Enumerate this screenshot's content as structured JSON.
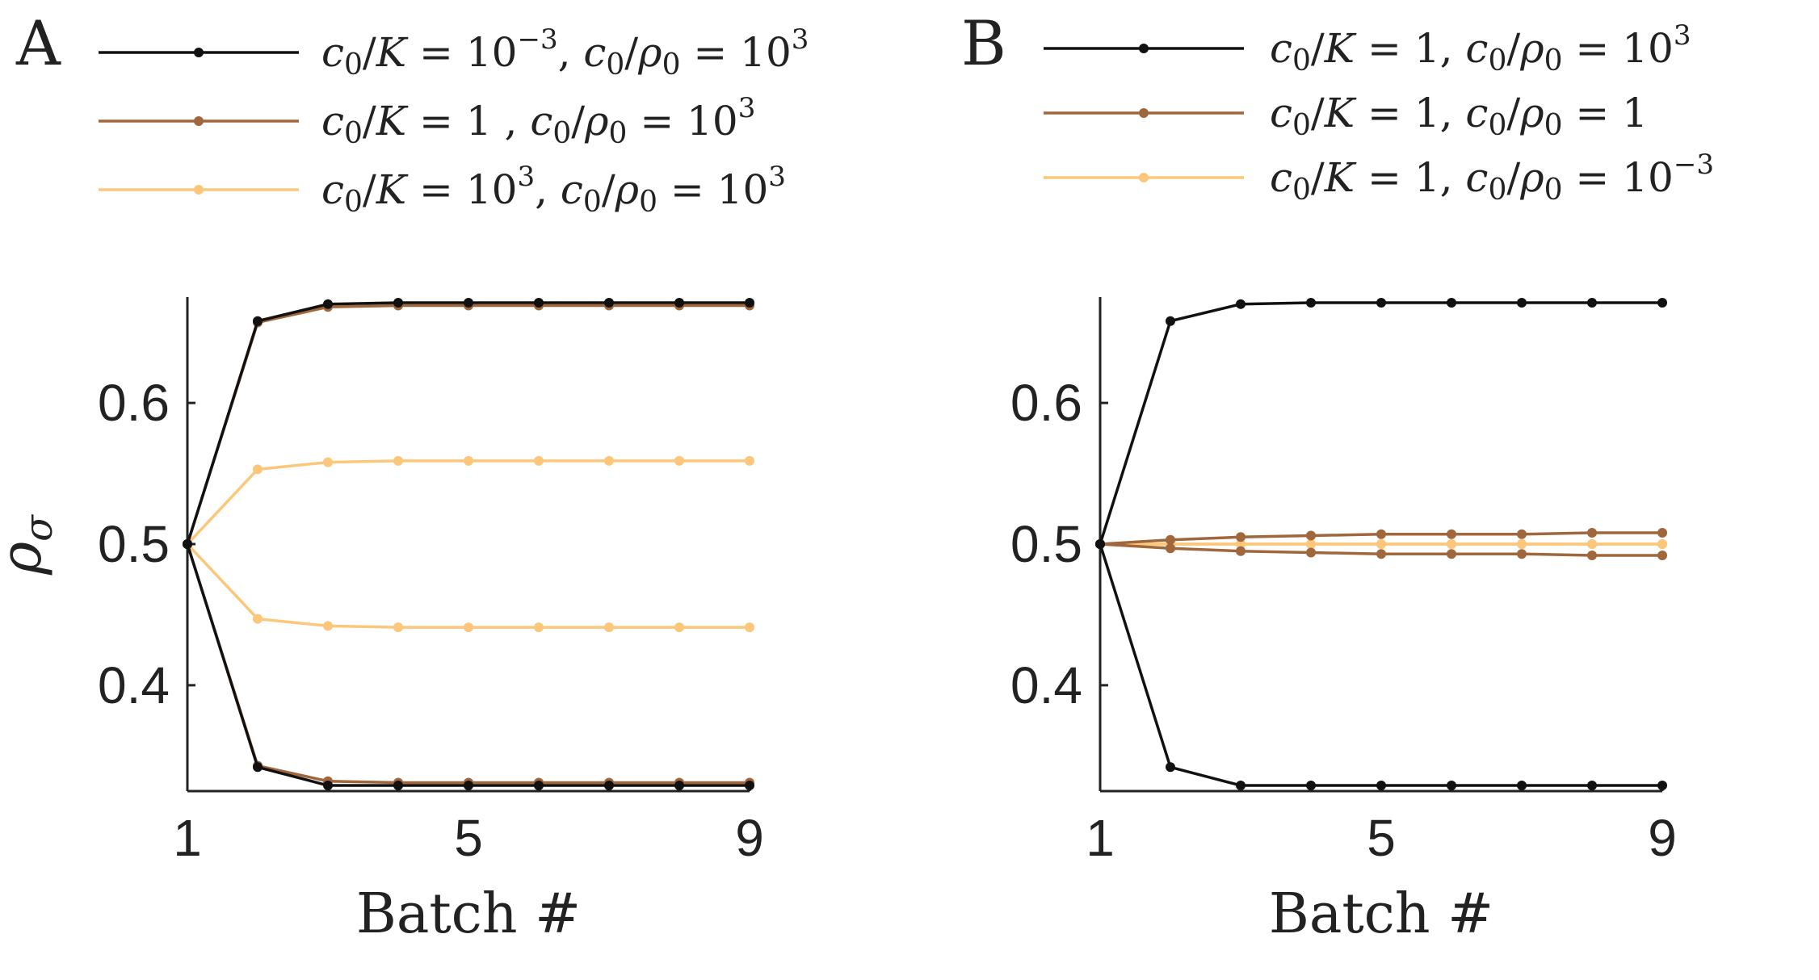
{
  "colors": {
    "black": "#111111",
    "brown": "#a0663c",
    "light": "#fcc77a",
    "axis": "#222222"
  },
  "chart_data": [
    {
      "panel": "A",
      "type": "line",
      "xlabel": "Batch #",
      "ylabel": "ρσ",
      "xlim": [
        1,
        9
      ],
      "ylim": [
        0.325,
        0.675
      ],
      "xticks": [
        1,
        5,
        9
      ],
      "xtick_labels": [
        "1",
        "5",
        "9"
      ],
      "yticks": [
        0.4,
        0.5,
        0.6
      ],
      "ytick_labels": [
        "0.4",
        "0.5",
        "0.6"
      ],
      "legend": {
        "placement": "top",
        "entries": [
          {
            "color": "black",
            "parts": [
              {
                "t": "c",
                "it": true
              },
              {
                "t": "0",
                "sub": true
              },
              {
                "t": "/",
                "it": false
              },
              {
                "t": "K",
                "it": true
              },
              {
                "t": " = 10",
                "it": false
              },
              {
                "t": "−3",
                "sup": true
              },
              {
                "t": ", ",
                "it": false
              },
              {
                "t": "c",
                "it": true
              },
              {
                "t": "0",
                "sub": true
              },
              {
                "t": "/",
                "it": false
              },
              {
                "t": "ρ",
                "it": true
              },
              {
                "t": "0",
                "sub": true
              },
              {
                "t": " = 10",
                "it": false
              },
              {
                "t": "3",
                "sup": true
              }
            ]
          },
          {
            "color": "brown",
            "parts": [
              {
                "t": "c",
                "it": true
              },
              {
                "t": "0",
                "sub": true
              },
              {
                "t": "/",
                "it": false
              },
              {
                "t": "K",
                "it": true
              },
              {
                "t": " = 1  , ",
                "it": false
              },
              {
                "t": "c",
                "it": true
              },
              {
                "t": "0",
                "sub": true
              },
              {
                "t": "/",
                "it": false
              },
              {
                "t": "ρ",
                "it": true
              },
              {
                "t": "0",
                "sub": true
              },
              {
                "t": " = 10",
                "it": false
              },
              {
                "t": "3",
                "sup": true
              }
            ]
          },
          {
            "color": "light",
            "parts": [
              {
                "t": "c",
                "it": true
              },
              {
                "t": "0",
                "sub": true
              },
              {
                "t": "/",
                "it": false
              },
              {
                "t": "K",
                "it": true
              },
              {
                "t": " = 10",
                "it": false
              },
              {
                "t": "3",
                "sup": true
              },
              {
                "t": ", ",
                "it": false
              },
              {
                "t": "c",
                "it": true
              },
              {
                "t": "0",
                "sub": true
              },
              {
                "t": "/",
                "it": false
              },
              {
                "t": "ρ",
                "it": true
              },
              {
                "t": "0",
                "sub": true
              },
              {
                "t": " = 10",
                "it": false
              },
              {
                "t": "3",
                "sup": true
              }
            ]
          }
        ]
      },
      "x": [
        1,
        2,
        3,
        4,
        5,
        6,
        7,
        8,
        9
      ],
      "series": [
        {
          "color": "black",
          "values": [
            0.5,
            0.658,
            0.67,
            0.671,
            0.671,
            0.671,
            0.671,
            0.671,
            0.671
          ]
        },
        {
          "color": "black",
          "values": [
            0.5,
            0.342,
            0.329,
            0.329,
            0.329,
            0.329,
            0.329,
            0.329,
            0.329
          ]
        },
        {
          "color": "brown",
          "values": [
            0.5,
            0.657,
            0.668,
            0.669,
            0.669,
            0.669,
            0.669,
            0.669,
            0.669
          ]
        },
        {
          "color": "brown",
          "values": [
            0.5,
            0.343,
            0.332,
            0.331,
            0.331,
            0.331,
            0.331,
            0.331,
            0.331
          ]
        },
        {
          "color": "light",
          "values": [
            0.5,
            0.553,
            0.558,
            0.559,
            0.559,
            0.559,
            0.559,
            0.559,
            0.559
          ]
        },
        {
          "color": "light",
          "values": [
            0.5,
            0.447,
            0.442,
            0.441,
            0.441,
            0.441,
            0.441,
            0.441,
            0.441
          ]
        }
      ]
    },
    {
      "panel": "B",
      "type": "line",
      "xlabel": "Batch #",
      "ylabel": "",
      "xlim": [
        1,
        9
      ],
      "ylim": [
        0.325,
        0.675
      ],
      "xticks": [
        1,
        5,
        9
      ],
      "xtick_labels": [
        "1",
        "5",
        "9"
      ],
      "yticks": [
        0.4,
        0.5,
        0.6
      ],
      "ytick_labels": [
        "0.4",
        "0.5",
        "0.6"
      ],
      "legend": {
        "placement": "top",
        "entries": [
          {
            "color": "black",
            "parts": [
              {
                "t": "c",
                "it": true
              },
              {
                "t": "0",
                "sub": true
              },
              {
                "t": "/",
                "it": false
              },
              {
                "t": "K",
                "it": true
              },
              {
                "t": " = 1, ",
                "it": false
              },
              {
                "t": "c",
                "it": true
              },
              {
                "t": "0",
                "sub": true
              },
              {
                "t": "/",
                "it": false
              },
              {
                "t": "ρ",
                "it": true
              },
              {
                "t": "0",
                "sub": true
              },
              {
                "t": " = 10",
                "it": false
              },
              {
                "t": "3",
                "sup": true
              }
            ]
          },
          {
            "color": "brown",
            "parts": [
              {
                "t": "c",
                "it": true
              },
              {
                "t": "0",
                "sub": true
              },
              {
                "t": "/",
                "it": false
              },
              {
                "t": "K",
                "it": true
              },
              {
                "t": " = 1, ",
                "it": false
              },
              {
                "t": "c",
                "it": true
              },
              {
                "t": "0",
                "sub": true
              },
              {
                "t": "/",
                "it": false
              },
              {
                "t": "ρ",
                "it": true
              },
              {
                "t": "0",
                "sub": true
              },
              {
                "t": " = 1",
                "it": false
              }
            ]
          },
          {
            "color": "light",
            "parts": [
              {
                "t": "c",
                "it": true
              },
              {
                "t": "0",
                "sub": true
              },
              {
                "t": "/",
                "it": false
              },
              {
                "t": "K",
                "it": true
              },
              {
                "t": " = 1, ",
                "it": false
              },
              {
                "t": "c",
                "it": true
              },
              {
                "t": "0",
                "sub": true
              },
              {
                "t": "/",
                "it": false
              },
              {
                "t": "ρ",
                "it": true
              },
              {
                "t": "0",
                "sub": true
              },
              {
                "t": " = 10",
                "it": false
              },
              {
                "t": "−3",
                "sup": true
              }
            ]
          }
        ]
      },
      "x": [
        1,
        2,
        3,
        4,
        5,
        6,
        7,
        8,
        9
      ],
      "series": [
        {
          "color": "black",
          "values": [
            0.5,
            0.658,
            0.67,
            0.671,
            0.671,
            0.671,
            0.671,
            0.671,
            0.671
          ]
        },
        {
          "color": "black",
          "values": [
            0.5,
            0.342,
            0.329,
            0.329,
            0.329,
            0.329,
            0.329,
            0.329,
            0.329
          ]
        },
        {
          "color": "brown",
          "values": [
            0.5,
            0.503,
            0.505,
            0.506,
            0.507,
            0.507,
            0.507,
            0.508,
            0.508
          ]
        },
        {
          "color": "brown",
          "values": [
            0.5,
            0.497,
            0.495,
            0.494,
            0.493,
            0.493,
            0.493,
            0.492,
            0.492
          ]
        },
        {
          "color": "light",
          "values": [
            0.5,
            0.5,
            0.5,
            0.5,
            0.5,
            0.5,
            0.5,
            0.5,
            0.5
          ]
        },
        {
          "color": "light",
          "values": [
            0.5,
            0.5,
            0.5,
            0.5,
            0.5,
            0.5,
            0.5,
            0.5,
            0.5
          ]
        }
      ]
    }
  ]
}
